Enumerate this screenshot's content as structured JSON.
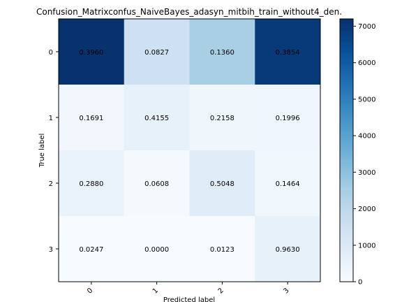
{
  "chart_data": {
    "type": "heatmap",
    "title": "Confusion_Matrixconfus_NaiveBayes_adasyn_mitbih_train_without4_den.",
    "xlabel": "Predicted label",
    "ylabel": "True label",
    "x_ticks": [
      "0",
      "1",
      "2",
      "3"
    ],
    "y_ticks": [
      "0",
      "1",
      "2",
      "3"
    ],
    "cell_labels": [
      [
        "0.3960",
        "0.0827",
        "0.1360",
        "0.3854"
      ],
      [
        "0.1691",
        "0.4155",
        "0.2158",
        "0.1996"
      ],
      [
        "0.2880",
        "0.0608",
        "0.5048",
        "0.1464"
      ],
      [
        "0.0247",
        "0.0000",
        "0.0123",
        "0.9630"
      ]
    ],
    "cell_counts": [
      [
        7150,
        1490,
        2460,
        6960
      ],
      [
        230,
        560,
        290,
        270
      ],
      [
        470,
        100,
        820,
        240
      ],
      [
        15,
        0,
        8,
        590
      ]
    ],
    "colormap": "Blues",
    "color_low": "#f7fbff",
    "color_high": "#08306b",
    "colorbar": {
      "min": 0,
      "max": 7200,
      "ticks": [
        "0",
        "1000",
        "2000",
        "3000",
        "4000",
        "5000",
        "6000",
        "7000"
      ]
    },
    "grid": false,
    "legend": "colorbar-right"
  }
}
